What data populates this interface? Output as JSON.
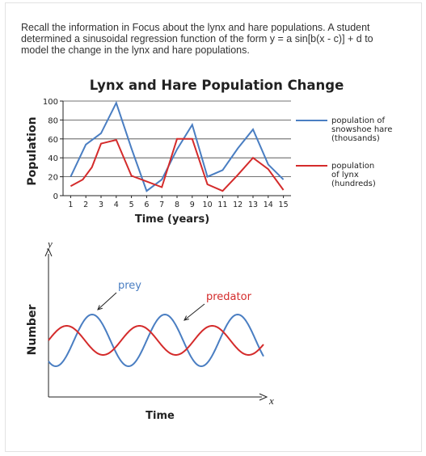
{
  "question": {
    "line1": "Recall the information in Focus about the lynx and hare populations. A student",
    "line2": "determined a sinusoidal regression function of the form y = a sin[b(x - c)] + d to",
    "line3": "model the change in the lynx and hare populations."
  },
  "colors": {
    "hare": "#4a7ec2",
    "lynx": "#d42b2b",
    "axis": "#222222",
    "grid": "#444444"
  },
  "chart_data": [
    {
      "type": "line",
      "title": "Lynx and Hare Population Change",
      "xlabel": "Time (years)",
      "ylabel": "Population",
      "x": [
        1,
        2,
        3,
        4,
        5,
        6,
        7,
        8,
        9,
        10,
        11,
        12,
        13,
        14,
        15
      ],
      "xlim": [
        0.5,
        15.5
      ],
      "ylim": [
        0,
        100
      ],
      "yticks": [
        "0",
        "20",
        "40",
        "60",
        "80",
        "100"
      ],
      "xticks": [
        "1",
        "2",
        "3",
        "4",
        "5",
        "6",
        "7",
        "8",
        "9",
        "10",
        "11",
        "12",
        "13",
        "14",
        "15"
      ],
      "grid": true,
      "legend": "right",
      "series": [
        {
          "key": "hare",
          "name_lines": [
            "population of",
            "snowshoe hare",
            "(thousands)"
          ],
          "x": [
            1,
            2,
            3,
            4,
            5,
            6,
            7,
            8,
            9,
            10,
            11,
            12,
            13,
            14,
            15
          ],
          "values": [
            20,
            54,
            66,
            98,
            50,
            5,
            17,
            49,
            75,
            20,
            27,
            50,
            70,
            33,
            17
          ]
        },
        {
          "key": "lynx",
          "name_lines": [
            "population",
            "of lynx",
            "(hundreds)"
          ],
          "x": [
            1,
            1.8,
            2.4,
            3,
            4,
            5,
            6,
            7,
            8,
            9,
            10,
            11,
            12,
            13,
            14,
            15
          ],
          "values": [
            10,
            17,
            30,
            55,
            59,
            21,
            15,
            9,
            60,
            60,
            12,
            5,
            22,
            40,
            28,
            6
          ]
        }
      ]
    },
    {
      "type": "line",
      "title": "",
      "xlabel": "Time",
      "ylabel": "Number",
      "x_axis_letter": "x",
      "y_axis_letter": "y",
      "grid": false,
      "series": [
        {
          "key": "prey",
          "label": "prey",
          "color": "#4a7ec2",
          "period": 90,
          "amplitude": 32,
          "phase": 0.35
        },
        {
          "key": "predator",
          "label": "predator",
          "color": "#d42b2b",
          "period": 90,
          "amplitude": 18,
          "phase": 0.0
        }
      ]
    }
  ]
}
